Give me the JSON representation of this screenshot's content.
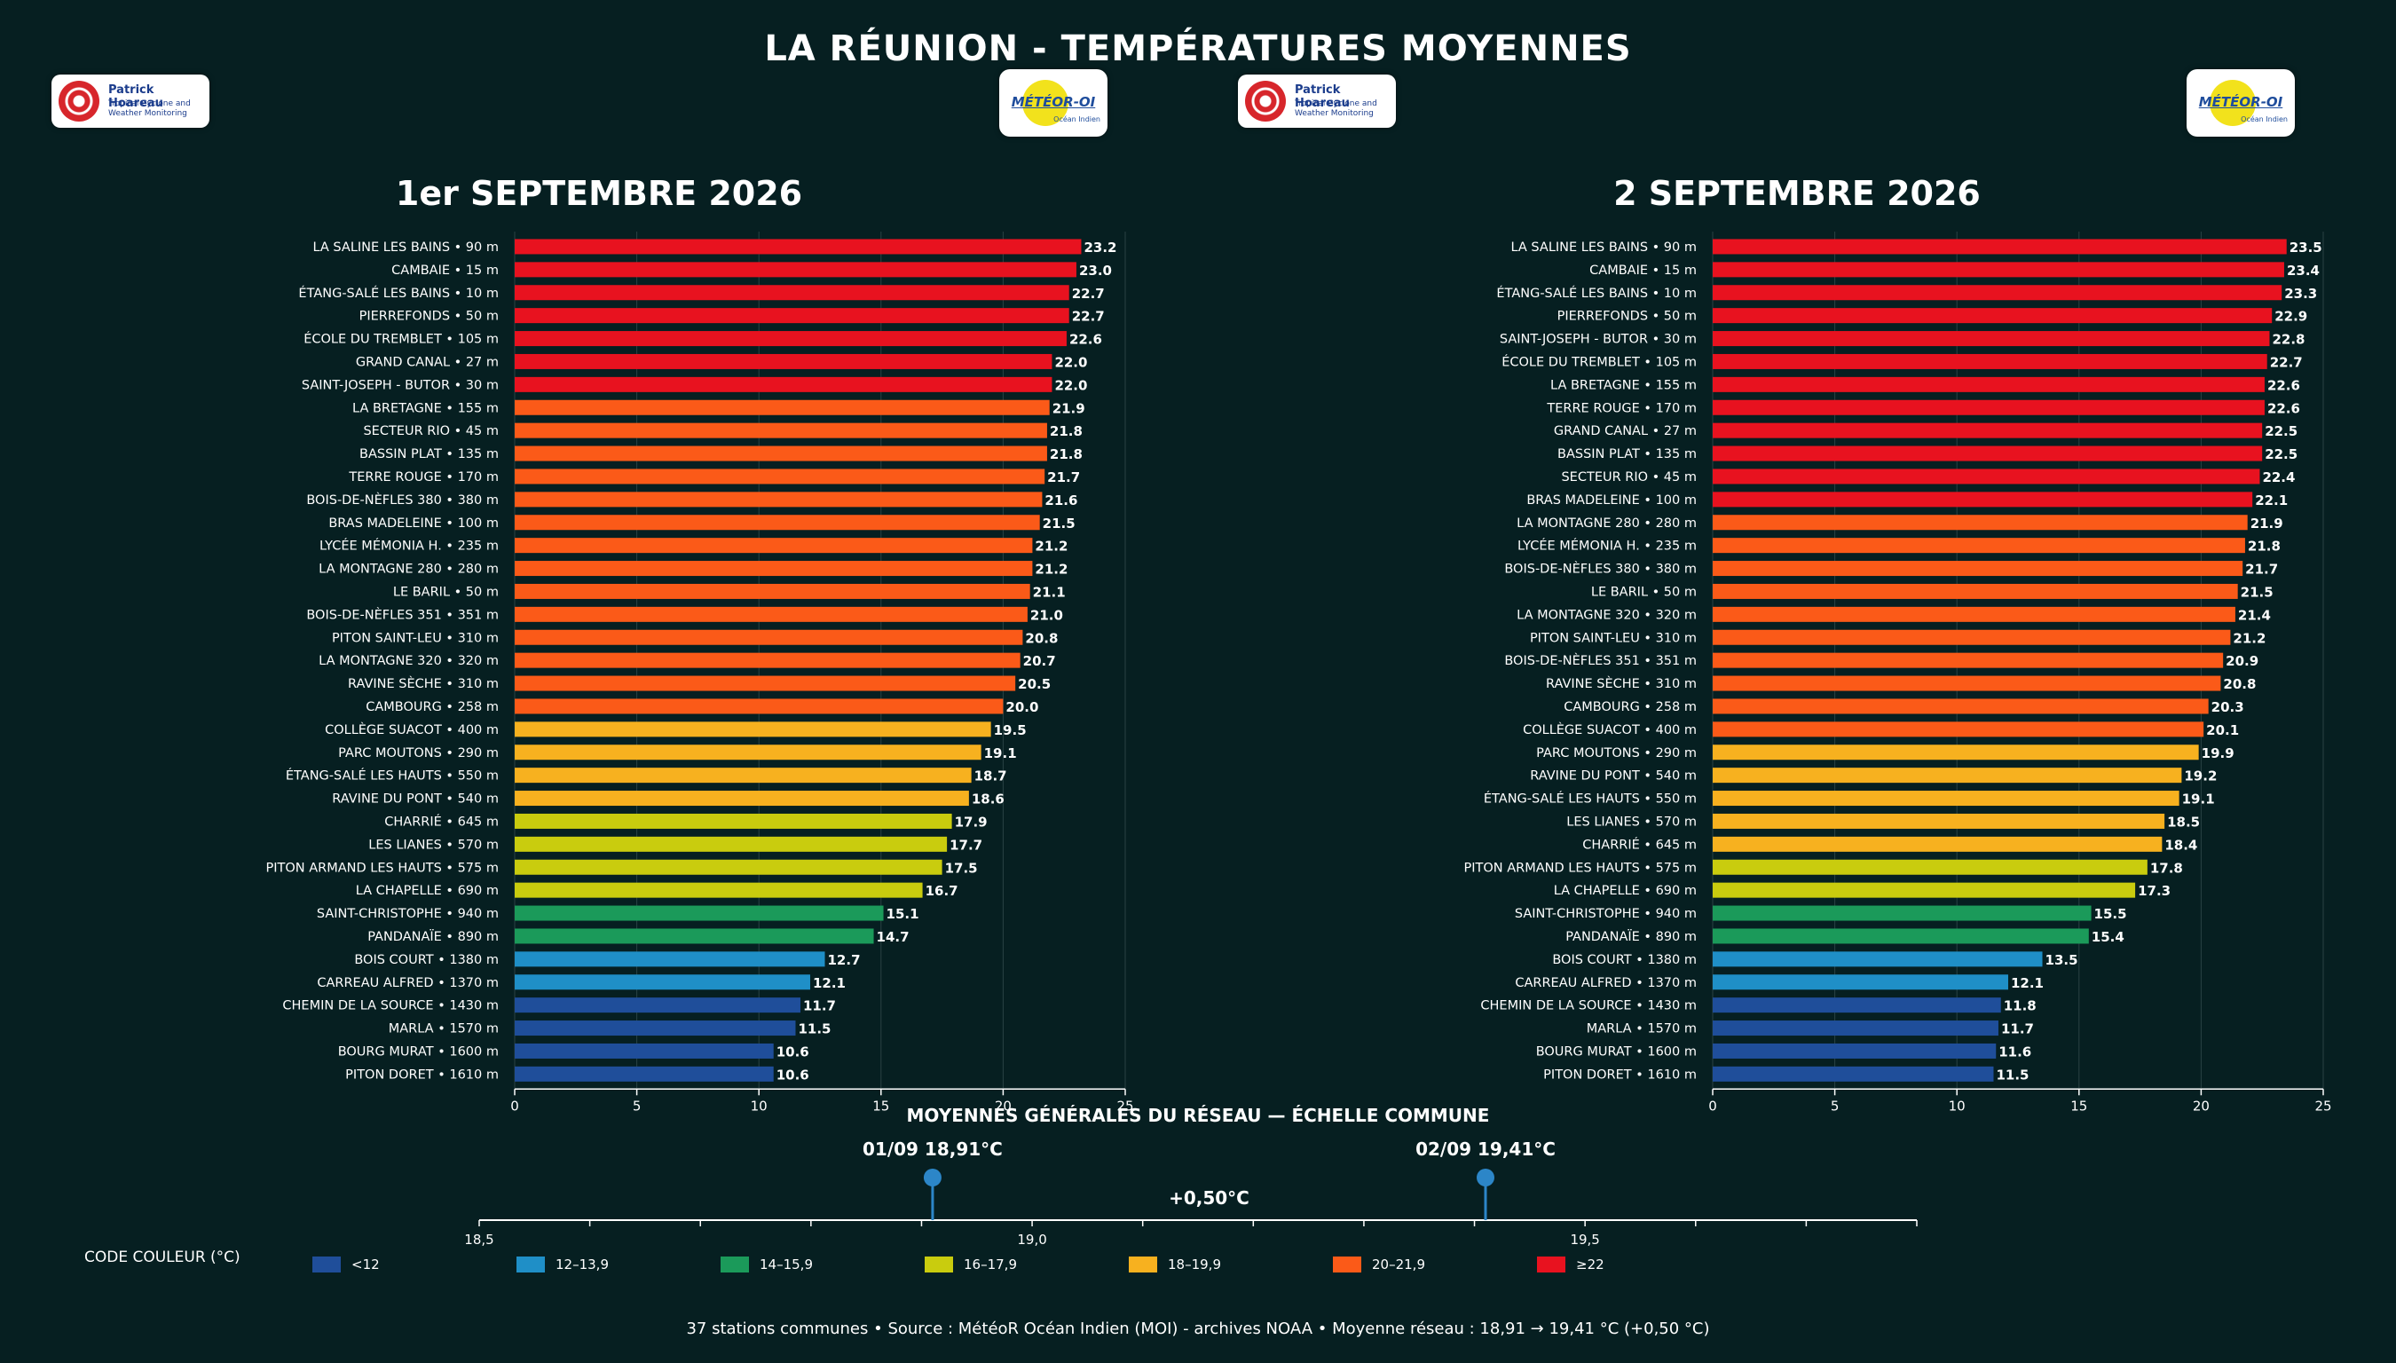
{
  "title": "LA RÉUNION - TEMPÉRATURES MOYENNES",
  "logos": {
    "ph_name": "Patrick Hoareau",
    "ph_sub1": "Tropical Cyclone and",
    "ph_sub2": "Weather Monitoring",
    "mo_text": "MÉTÉOR-OI",
    "mo_sub": "Océan Indien"
  },
  "colors": {
    "background": "#061f21",
    "lt12": "#1f4e9a",
    "c12": "#1f8fc7",
    "c14": "#1b9a5a",
    "c16": "#c9cc0e",
    "c18": "#f7b11f",
    "c20": "#fb5a18",
    "c22": "#e8121f"
  },
  "chart_data": [
    {
      "type": "bar",
      "orientation": "horizontal",
      "title": "1er SEPTEMBRE 2026",
      "xlim": [
        0,
        25
      ],
      "xticks": [
        0,
        5,
        10,
        15,
        20,
        25
      ],
      "grid": true,
      "categories": [
        "LA SALINE LES BAINS  •  90 m",
        "CAMBAIE  •  15 m",
        "ÉTANG-SALÉ LES BAINS  •  10 m",
        "PIERREFONDS  •  50 m",
        "ÉCOLE DU TREMBLET  •  105 m",
        "GRAND CANAL  •  27 m",
        "SAINT-JOSEPH - BUTOR  •  30 m",
        "LA BRETAGNE  •  155 m",
        "SECTEUR RIO  •  45 m",
        "BASSIN PLAT  •  135 m",
        "TERRE ROUGE  •  170 m",
        "BOIS-DE-NÈFLES 380  •  380 m",
        "BRAS MADELEINE  •  100 m",
        "LYCÉE MÉMONIA H.  •  235 m",
        "LA MONTAGNE 280  •  280 m",
        "LE BARIL  •  50 m",
        "BOIS-DE-NÈFLES 351  •  351 m",
        "PITON SAINT-LEU  •  310 m",
        "LA MONTAGNE 320  •  320 m",
        "RAVINE SÈCHE  •  310 m",
        "CAMBOURG  •  258 m",
        "COLLÈGE SUACOT  •  400 m",
        "PARC MOUTONS  •  290 m",
        "ÉTANG-SALÉ LES HAUTS  •  550 m",
        "RAVINE DU PONT  •  540 m",
        "CHARRIÉ  •  645 m",
        "LES LIANES  •  570 m",
        "PITON ARMAND LES HAUTS  •  575 m",
        "LA CHAPELLE  •  690 m",
        "SAINT-CHRISTOPHE  •  940 m",
        "PANDANAÏE  •  890 m",
        "BOIS COURT  •  1380 m",
        "CARREAU ALFRED  •  1370 m",
        "CHEMIN DE LA SOURCE  •  1430 m",
        "MARLA  •  1570 m",
        "BOURG MURAT  •  1600 m",
        "PITON DORET  •  1610 m"
      ],
      "values": [
        23.2,
        23.0,
        22.7,
        22.7,
        22.6,
        22.0,
        22.0,
        21.9,
        21.8,
        21.8,
        21.7,
        21.6,
        21.5,
        21.2,
        21.2,
        21.1,
        21.0,
        20.8,
        20.7,
        20.5,
        20.0,
        19.5,
        19.1,
        18.7,
        18.6,
        17.9,
        17.7,
        17.5,
        16.7,
        15.1,
        14.7,
        12.7,
        12.1,
        11.7,
        11.5,
        10.6,
        10.6
      ],
      "value_labels": [
        "23.2",
        "23.0",
        "22.7",
        "22.7",
        "22.6",
        "22.0",
        "22.0",
        "21.9",
        "21.8",
        "21.8",
        "21.7",
        "21.6",
        "21.5",
        "21.2",
        "21.2",
        "21.1",
        "21.0",
        "20.8",
        "20.7",
        "20.5",
        "20.0",
        "19.5",
        "19.1",
        "18.7",
        "18.6",
        "17.9",
        "17.7",
        "17.5",
        "16.7",
        "15.1",
        "14.7",
        "12.7",
        "12.1",
        "11.7",
        "11.5",
        "10.6",
        "10.6"
      ]
    },
    {
      "type": "bar",
      "orientation": "horizontal",
      "title": "2 SEPTEMBRE 2026",
      "xlim": [
        0,
        25
      ],
      "xticks": [
        0,
        5,
        10,
        15,
        20,
        25
      ],
      "grid": true,
      "categories": [
        "LA SALINE LES BAINS  •  90 m",
        "CAMBAIE  •  15 m",
        "ÉTANG-SALÉ LES BAINS  •  10 m",
        "PIERREFONDS  •  50 m",
        "SAINT-JOSEPH - BUTOR  •  30 m",
        "ÉCOLE DU TREMBLET  •  105 m",
        "LA BRETAGNE  •  155 m",
        "TERRE ROUGE  •  170 m",
        "GRAND CANAL  •  27 m",
        "BASSIN PLAT  •  135 m",
        "SECTEUR RIO  •  45 m",
        "BRAS MADELEINE  •  100 m",
        "LA MONTAGNE 280  •  280 m",
        "LYCÉE MÉMONIA H.  •  235 m",
        "BOIS-DE-NÈFLES 380  •  380 m",
        "LE BARIL  •  50 m",
        "LA MONTAGNE 320  •  320 m",
        "PITON SAINT-LEU  •  310 m",
        "BOIS-DE-NÈFLES 351  •  351 m",
        "RAVINE SÈCHE  •  310 m",
        "CAMBOURG  •  258 m",
        "COLLÈGE SUACOT  •  400 m",
        "PARC MOUTONS  •  290 m",
        "RAVINE DU PONT  •  540 m",
        "ÉTANG-SALÉ LES HAUTS  •  550 m",
        "LES LIANES  •  570 m",
        "CHARRIÉ  •  645 m",
        "PITON ARMAND LES HAUTS  •  575 m",
        "LA CHAPELLE  •  690 m",
        "SAINT-CHRISTOPHE  •  940 m",
        "PANDANAÏE  •  890 m",
        "BOIS COURT  •  1380 m",
        "CARREAU ALFRED  •  1370 m",
        "CHEMIN DE LA SOURCE  •  1430 m",
        "MARLA  •  1570 m",
        "BOURG MURAT  •  1600 m",
        "PITON DORET  •  1610 m"
      ],
      "values": [
        23.5,
        23.4,
        23.3,
        22.9,
        22.8,
        22.7,
        22.6,
        22.6,
        22.5,
        22.5,
        22.4,
        22.1,
        21.9,
        21.8,
        21.7,
        21.5,
        21.4,
        21.2,
        20.9,
        20.8,
        20.3,
        20.1,
        19.9,
        19.2,
        19.1,
        18.5,
        18.4,
        17.8,
        17.3,
        15.5,
        15.4,
        13.5,
        12.1,
        11.8,
        11.7,
        11.6,
        11.5
      ],
      "value_labels": [
        "23.5",
        "23.4",
        "23.3",
        "22.9",
        "22.8",
        "22.7",
        "22.6",
        "22.6",
        "22.5",
        "22.5",
        "22.4",
        "22.1",
        "21.9",
        "21.8",
        "21.7",
        "21.5",
        "21.4",
        "21.2",
        "20.9",
        "20.8",
        "20.3",
        "20.1",
        "19.9",
        "19.2",
        "19.1",
        "18.5",
        "18.4",
        "17.8",
        "17.3",
        "15.5",
        "15.4",
        "13.5",
        "12.1",
        "11.8",
        "11.7",
        "11.6",
        "11.5"
      ]
    },
    {
      "type": "scatter",
      "title": "MOYENNES GÉNÉRALES DU RÉSEAU — ÉCHELLE COMMUNE",
      "xlim": [
        18.5,
        19.8
      ],
      "xticks": [
        18.5,
        19.0,
        19.5
      ],
      "xtick_labels": [
        "18,5",
        "19,0",
        "19,5"
      ],
      "points": [
        {
          "x": 18.91,
          "label": "01/09  18,91°C"
        },
        {
          "x": 19.41,
          "label": "02/09  19,41°C"
        }
      ],
      "difference_label": "+0,50°C"
    }
  ],
  "legend": {
    "title": "CODE COULEUR (°C)",
    "items": [
      {
        "label": "<12",
        "color": "#1f4e9a"
      },
      {
        "label": "12–13,9",
        "color": "#1f8fc7"
      },
      {
        "label": "14–15,9",
        "color": "#1b9a5a"
      },
      {
        "label": "16–17,9",
        "color": "#c9cc0e"
      },
      {
        "label": "18–19,9",
        "color": "#f7b11f"
      },
      {
        "label": "20–21,9",
        "color": "#fb5a18"
      },
      {
        "label": "≥22",
        "color": "#e8121f"
      }
    ]
  },
  "footer": "37 stations communes • Source : MétéoR Océan Indien (MOI) - archives NOAA • Moyenne réseau : 18,91 → 19,41 °C (+0,50 °C)"
}
